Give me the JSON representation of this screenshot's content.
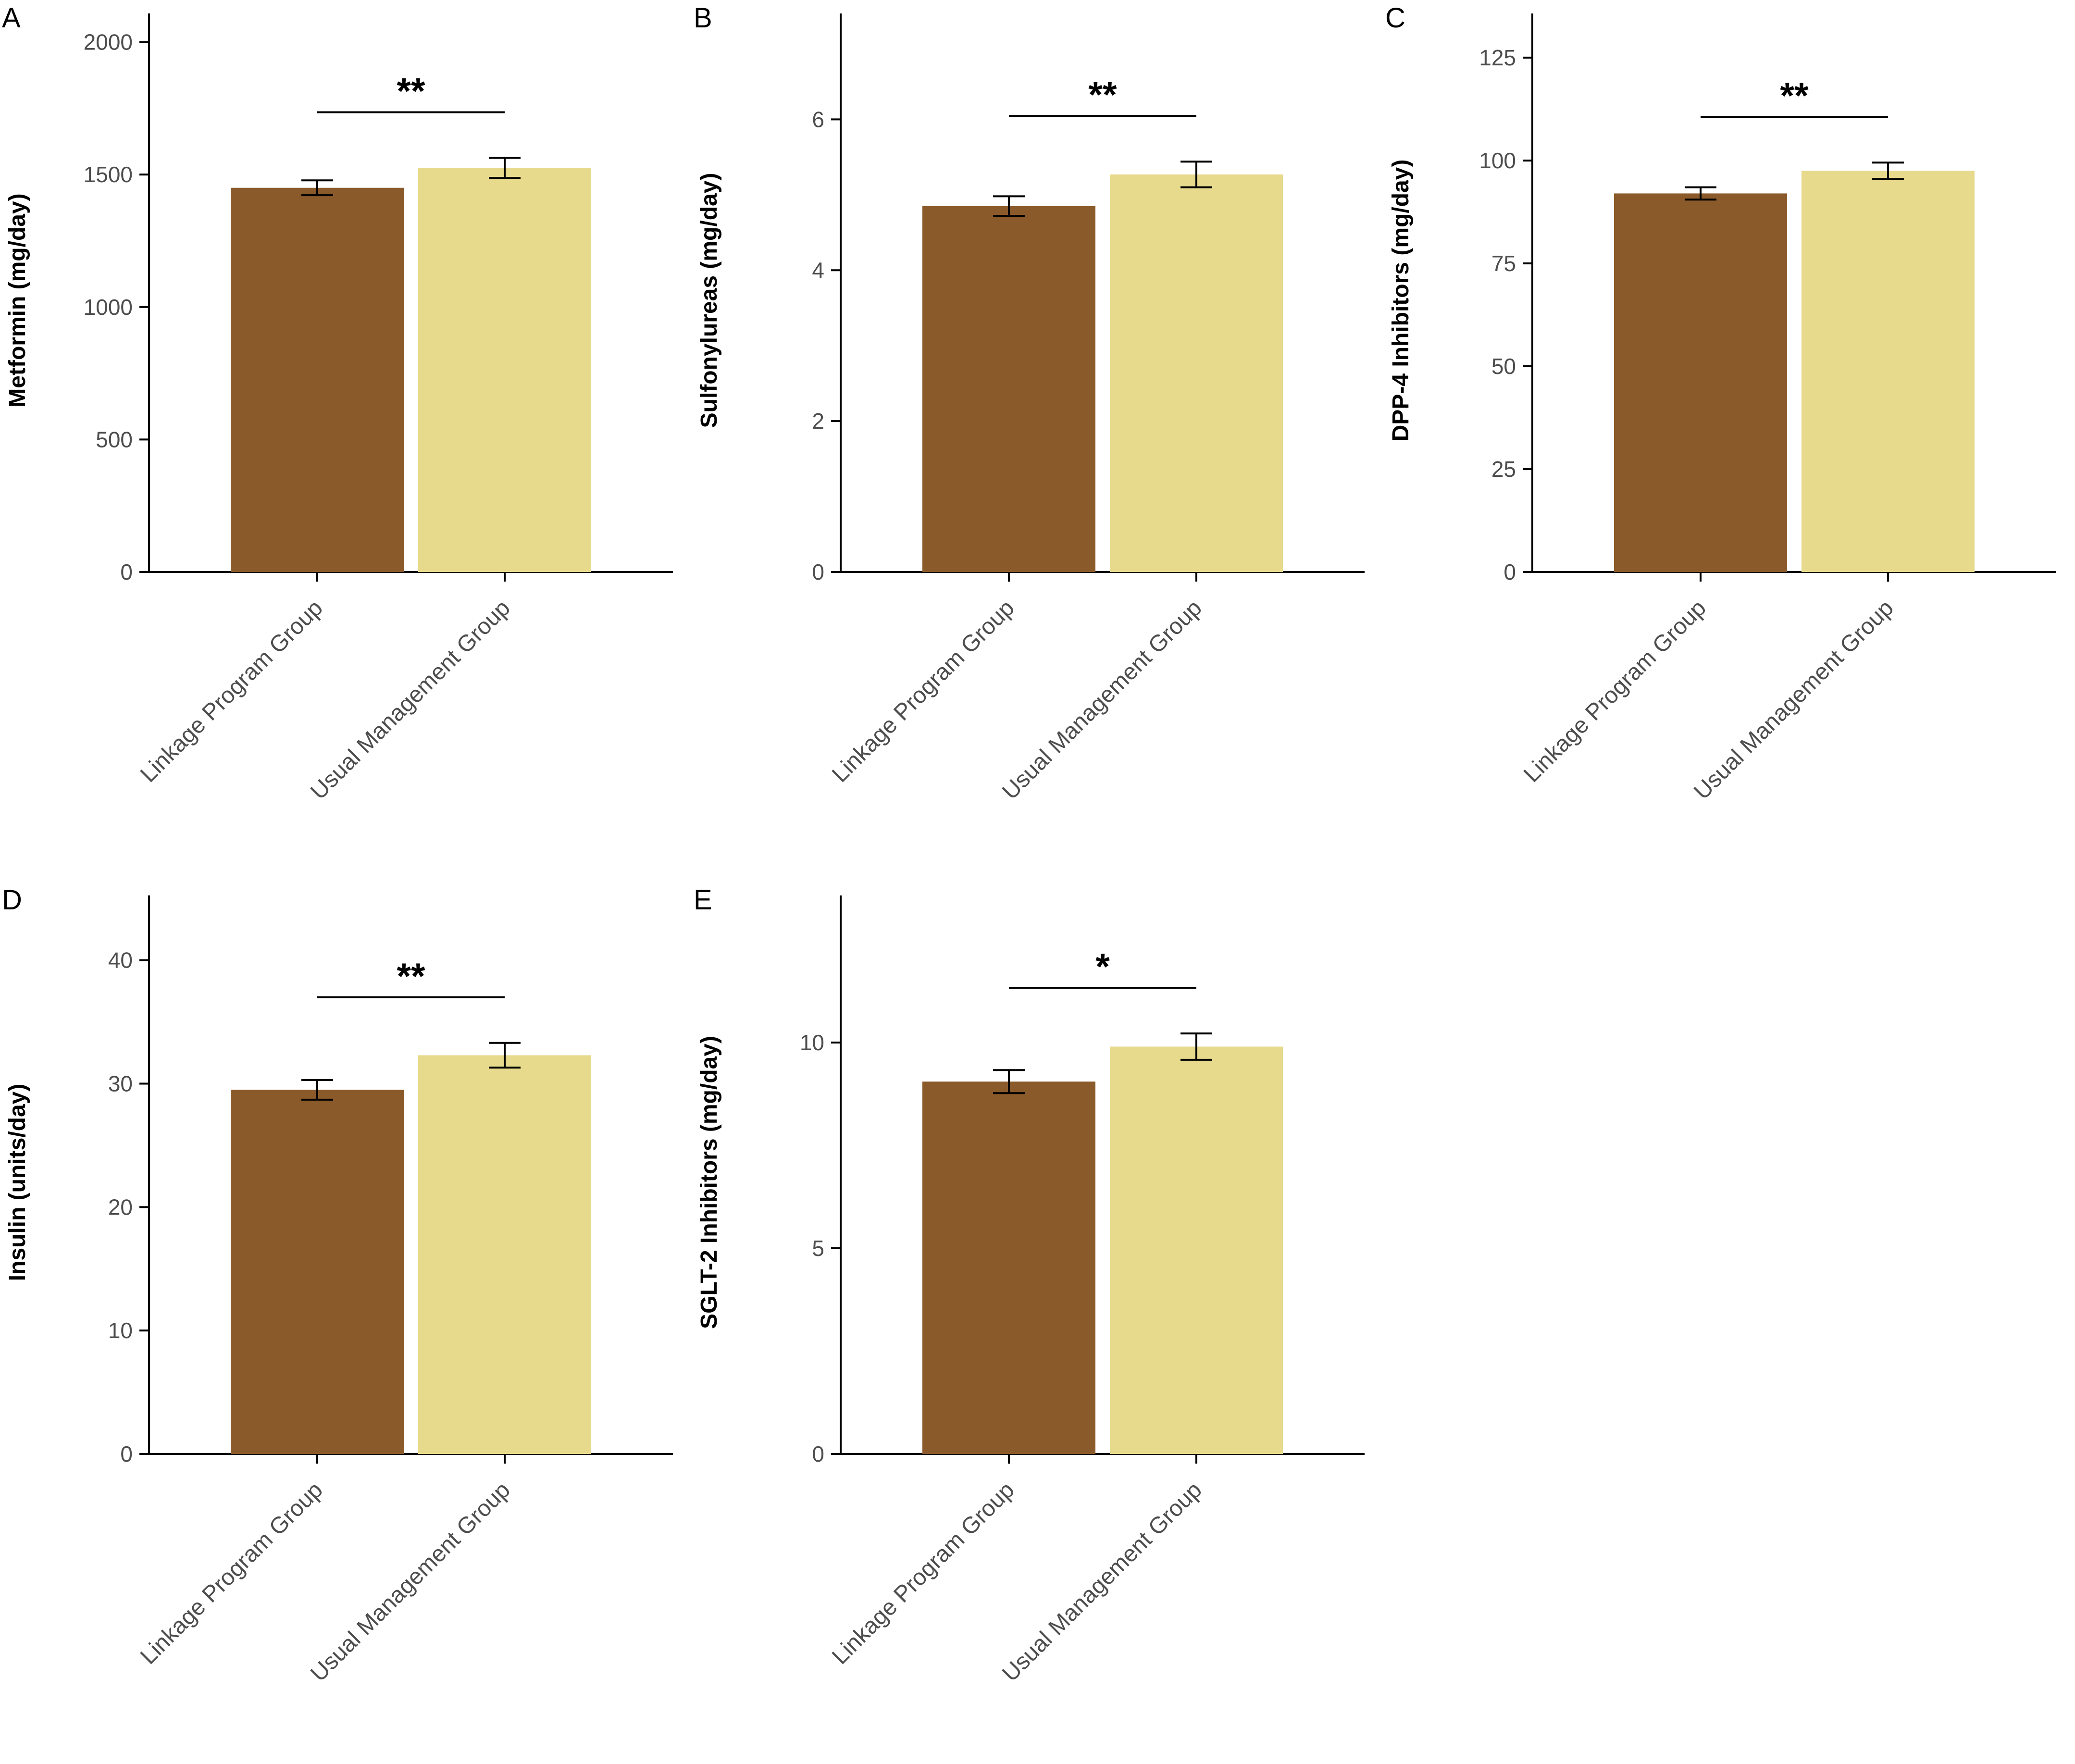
{
  "figure": {
    "background": "#ffffff",
    "axis_color": "#000000",
    "tick_label_color": "#4d4d4d",
    "bar_colors": [
      "#8B5A2B",
      "#E7DA8C"
    ],
    "group_names": [
      "Linkage Program Group",
      "Usual Management Group"
    ]
  },
  "chart_data": [
    {
      "type": "bar",
      "panel": "A",
      "ylabel": "Metformin (mg/day)",
      "categories": [
        "Linkage Program Group",
        "Usual Management Group"
      ],
      "values": [
        1450,
        1525
      ],
      "errors": [
        28,
        38
      ],
      "significance": "**",
      "ylim": [
        0,
        2050
      ],
      "yticks": [
        0,
        500,
        1000,
        1500,
        2000
      ]
    },
    {
      "type": "bar",
      "panel": "B",
      "ylabel": "Sulfonylureas (mg/day)",
      "categories": [
        "Linkage Program Group",
        "Usual Management Group"
      ],
      "values": [
        4.85,
        5.27
      ],
      "errors": [
        0.13,
        0.17
      ],
      "significance": "**",
      "ylim": [
        0,
        7.2
      ],
      "yticks": [
        0,
        2,
        4,
        6
      ]
    },
    {
      "type": "bar",
      "panel": "C",
      "ylabel": "DPP-4 Inhibitors (mg/day)",
      "categories": [
        "Linkage Program Group",
        "Usual Management Group"
      ],
      "values": [
        92,
        97.5
      ],
      "errors": [
        1.5,
        2
      ],
      "significance": "**",
      "ylim": [
        0,
        132
      ],
      "yticks": [
        0,
        25,
        50,
        75,
        100,
        125
      ]
    },
    {
      "type": "bar",
      "panel": "D",
      "ylabel": "Insulin (units/day)",
      "categories": [
        "Linkage Program Group",
        "Usual Management Group"
      ],
      "values": [
        29.5,
        32.3
      ],
      "errors": [
        0.8,
        1.0
      ],
      "significance": "**",
      "ylim": [
        0,
        44
      ],
      "yticks": [
        0,
        10,
        20,
        30,
        40
      ]
    },
    {
      "type": "bar",
      "panel": "E",
      "ylabel": "SGLT-2 Inhibitors (mg/day)",
      "categories": [
        "Linkage Program Group",
        "Usual Management Group"
      ],
      "values": [
        9.05,
        9.9
      ],
      "errors": [
        0.28,
        0.32
      ],
      "significance": "*",
      "ylim": [
        0,
        13.2
      ],
      "yticks": [
        0,
        5,
        10
      ]
    }
  ]
}
